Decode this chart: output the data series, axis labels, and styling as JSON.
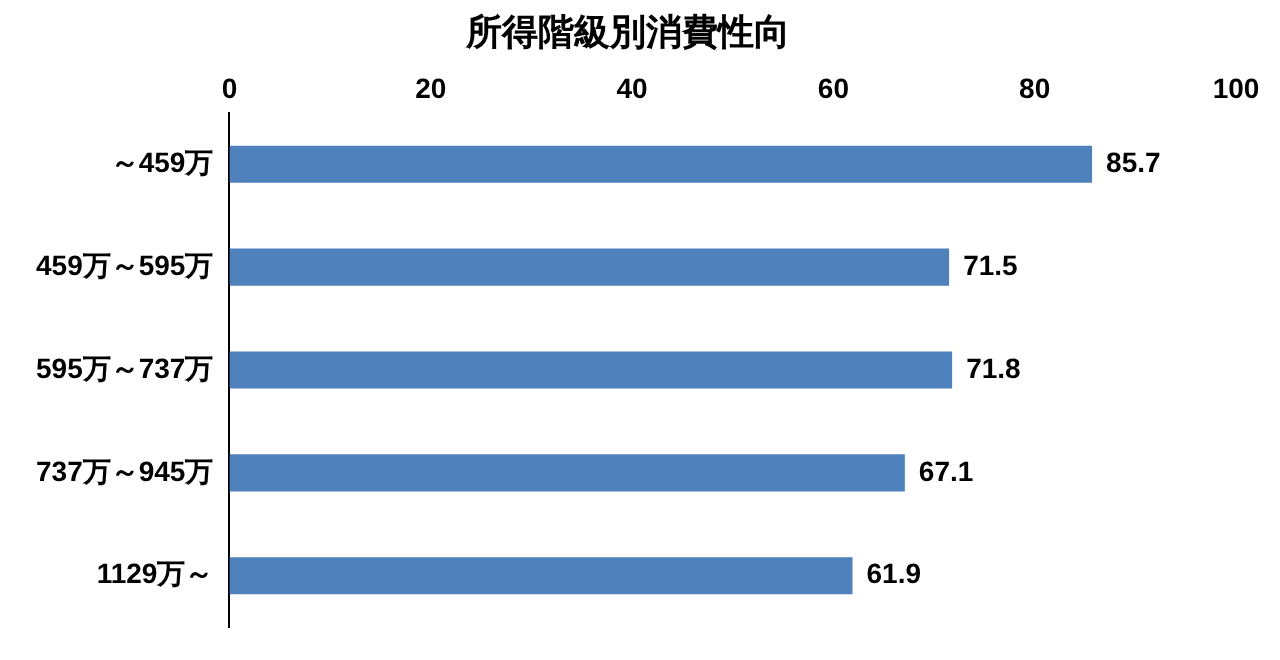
{
  "chart_data": {
    "type": "bar",
    "orientation": "horizontal",
    "title": "所得階級別消費性向",
    "categories": [
      "～459万",
      "459万～595万",
      "595万～737万",
      "737万～945万",
      "1129万～"
    ],
    "values": [
      85.7,
      71.5,
      71.8,
      67.1,
      61.9
    ],
    "color": "#4f81bd",
    "xlim": [
      0,
      100
    ],
    "xticks": [
      0,
      20,
      40,
      60,
      80,
      100
    ],
    "data_labels": true
  }
}
